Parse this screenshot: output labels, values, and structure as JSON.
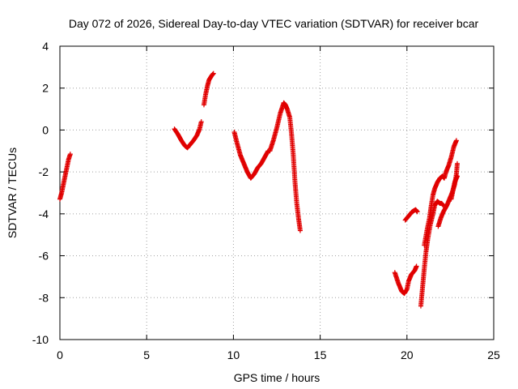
{
  "chart_data": {
    "type": "scatter",
    "title": "Day 072 of 2026, Sidereal Day-to-day VTEC variation (SDTVAR) for receiver bcar",
    "xlabel": "GPS time / hours",
    "ylabel": "SDTVAR / TECUs",
    "xlim": [
      0,
      25
    ],
    "ylim": [
      -10,
      4
    ],
    "xticks": [
      0,
      5,
      10,
      15,
      20,
      25
    ],
    "yticks": [
      -10,
      -8,
      -6,
      -4,
      -2,
      0,
      2,
      4
    ],
    "grid": true,
    "marker": "+",
    "marker_color": "#e00000",
    "series": [
      {
        "segments": [
          [
            [
              0.0,
              -3.3
            ],
            [
              0.1,
              -3.0
            ],
            [
              0.2,
              -2.6
            ],
            [
              0.3,
              -2.2
            ],
            [
              0.4,
              -1.8
            ],
            [
              0.5,
              -1.4
            ],
            [
              0.6,
              -1.15
            ]
          ],
          [
            [
              6.6,
              0.05
            ],
            [
              6.8,
              -0.2
            ],
            [
              7.0,
              -0.5
            ],
            [
              7.2,
              -0.75
            ],
            [
              7.35,
              -0.85
            ],
            [
              7.5,
              -0.7
            ],
            [
              7.7,
              -0.5
            ],
            [
              7.9,
              -0.25
            ],
            [
              8.05,
              0.05
            ],
            [
              8.15,
              0.4
            ]
          ],
          [
            [
              8.3,
              1.2
            ],
            [
              8.4,
              1.7
            ],
            [
              8.5,
              2.1
            ],
            [
              8.6,
              2.4
            ],
            [
              8.75,
              2.6
            ],
            [
              8.85,
              2.7
            ]
          ],
          [
            [
              10.05,
              -0.1
            ],
            [
              10.2,
              -0.6
            ],
            [
              10.4,
              -1.2
            ],
            [
              10.6,
              -1.6
            ],
            [
              10.8,
              -2.0
            ],
            [
              11.0,
              -2.3
            ],
            [
              11.2,
              -2.1
            ],
            [
              11.4,
              -1.8
            ],
            [
              11.6,
              -1.6
            ],
            [
              11.8,
              -1.3
            ],
            [
              12.0,
              -1.0
            ]
          ],
          [
            [
              12.1,
              -1.0
            ],
            [
              12.3,
              -0.5
            ],
            [
              12.5,
              0.1
            ],
            [
              12.7,
              0.8
            ],
            [
              12.9,
              1.3
            ],
            [
              13.0,
              1.2
            ],
            [
              13.1,
              1.0
            ],
            [
              13.25,
              0.6
            ],
            [
              13.35,
              -0.2
            ],
            [
              13.45,
              -1.2
            ],
            [
              13.55,
              -2.5
            ],
            [
              13.65,
              -3.5
            ],
            [
              13.75,
              -4.2
            ],
            [
              13.85,
              -4.8
            ]
          ],
          [
            [
              19.3,
              -6.8
            ],
            [
              19.5,
              -7.3
            ],
            [
              19.7,
              -7.7
            ],
            [
              19.85,
              -7.8
            ],
            [
              20.0,
              -7.6
            ],
            [
              20.1,
              -7.2
            ],
            [
              20.25,
              -6.9
            ],
            [
              20.45,
              -6.7
            ],
            [
              20.55,
              -6.5
            ]
          ],
          [
            [
              19.9,
              -4.3
            ],
            [
              20.1,
              -4.1
            ],
            [
              20.3,
              -3.9
            ],
            [
              20.5,
              -3.8
            ],
            [
              20.6,
              -3.9
            ]
          ],
          [
            [
              20.8,
              -8.4
            ],
            [
              20.9,
              -7.5
            ],
            [
              21.0,
              -6.6
            ],
            [
              21.1,
              -5.8
            ],
            [
              21.2,
              -5.2
            ],
            [
              21.35,
              -4.5
            ],
            [
              21.5,
              -4.0
            ],
            [
              21.6,
              -3.6
            ],
            [
              21.75,
              -3.4
            ],
            [
              21.9,
              -3.5
            ],
            [
              22.0,
              -3.5
            ],
            [
              22.1,
              -3.6
            ]
          ],
          [
            [
              21.0,
              -5.5
            ],
            [
              21.15,
              -4.8
            ],
            [
              21.3,
              -4.2
            ],
            [
              21.4,
              -3.6
            ],
            [
              21.5,
              -3.1
            ],
            [
              21.6,
              -2.8
            ],
            [
              21.75,
              -2.5
            ],
            [
              21.9,
              -2.3
            ],
            [
              22.05,
              -2.2
            ],
            [
              22.15,
              -2.3
            ],
            [
              22.25,
              -2.0
            ],
            [
              22.4,
              -1.7
            ],
            [
              22.55,
              -1.3
            ],
            [
              22.7,
              -0.8
            ],
            [
              22.85,
              -0.5
            ]
          ],
          [
            [
              21.8,
              -4.6
            ],
            [
              21.95,
              -4.2
            ],
            [
              22.1,
              -3.9
            ],
            [
              22.3,
              -3.6
            ],
            [
              22.45,
              -3.3
            ],
            [
              22.6,
              -3.0
            ],
            [
              22.75,
              -2.6
            ],
            [
              22.85,
              -2.1
            ],
            [
              22.9,
              -1.6
            ]
          ],
          [
            [
              22.55,
              -3.3
            ],
            [
              22.65,
              -2.9
            ],
            [
              22.75,
              -2.5
            ],
            [
              22.85,
              -2.3
            ],
            [
              22.9,
              -2.2
            ]
          ]
        ]
      }
    ]
  }
}
